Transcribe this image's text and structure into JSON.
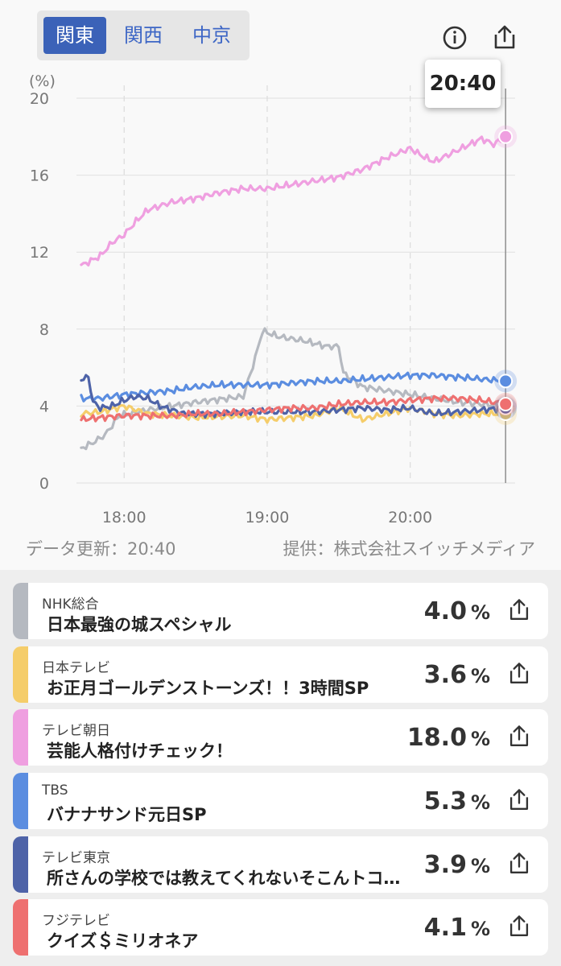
{
  "regions": [
    "関東",
    "関西",
    "中京"
  ],
  "active_region": 0,
  "tooltip_time": "20:40",
  "chart_data": {
    "type": "line",
    "ylabel": "(%)",
    "ylim": [
      0,
      20
    ],
    "yticks": [
      "0",
      "4",
      "8",
      "12",
      "16",
      "20"
    ],
    "xlim": [
      "17:40",
      "20:44"
    ],
    "xticks": [
      "18:00",
      "19:00",
      "20:00"
    ],
    "cursor_time": "20:40",
    "series": [
      {
        "name": "NHK総合",
        "color": "#b5b9c0",
        "x": [
          "17:42",
          "17:47",
          "17:52",
          "17:58",
          "18:10",
          "18:30",
          "18:50",
          "18:55",
          "18:58",
          "19:05",
          "19:15",
          "19:25",
          "19:30",
          "19:32",
          "19:40",
          "20:00",
          "20:20",
          "20:40"
        ],
        "y": [
          1.8,
          2.1,
          2.5,
          3.5,
          3.8,
          4.2,
          4.5,
          6.5,
          7.9,
          7.6,
          7.4,
          7.1,
          7.1,
          5.7,
          5.0,
          4.6,
          4.2,
          4.0
        ]
      },
      {
        "name": "日本テレビ",
        "color": "#f5cd6a",
        "x": [
          "17:42",
          "17:50",
          "18:00",
          "18:10",
          "18:30",
          "18:50",
          "19:00",
          "19:10",
          "19:20",
          "19:30",
          "19:40",
          "19:50",
          "20:00",
          "20:10",
          "20:20",
          "20:30",
          "20:40"
        ],
        "y": [
          3.6,
          3.7,
          4.0,
          3.6,
          3.4,
          3.5,
          3.3,
          3.4,
          3.5,
          3.9,
          3.3,
          3.6,
          3.9,
          3.6,
          3.5,
          3.6,
          3.6
        ]
      },
      {
        "name": "テレビ朝日",
        "color": "#ef9fe0",
        "x": [
          "17:42",
          "17:50",
          "17:55",
          "18:00",
          "18:05",
          "18:10",
          "18:15",
          "18:20",
          "18:30",
          "18:40",
          "18:50",
          "19:00",
          "19:10",
          "19:20",
          "19:30",
          "19:40",
          "19:50",
          "20:00",
          "20:05",
          "20:10",
          "20:20",
          "20:30",
          "20:35",
          "20:40"
        ],
        "y": [
          11.3,
          11.8,
          12.5,
          12.9,
          13.6,
          14.2,
          14.4,
          14.6,
          14.8,
          15.1,
          15.3,
          15.3,
          15.5,
          15.7,
          15.9,
          16.3,
          16.9,
          17.4,
          17.0,
          16.7,
          17.3,
          17.9,
          17.6,
          18.0
        ]
      },
      {
        "name": "TBS",
        "color": "#5b8de0",
        "x": [
          "17:42",
          "17:50",
          "18:00",
          "18:10",
          "18:20",
          "18:30",
          "18:40",
          "18:50",
          "19:00",
          "19:10",
          "19:20",
          "19:30",
          "19:40",
          "19:50",
          "20:00",
          "20:10",
          "20:20",
          "20:30",
          "20:40"
        ],
        "y": [
          4.4,
          4.4,
          4.6,
          4.7,
          4.8,
          5.0,
          5.1,
          5.1,
          5.1,
          5.2,
          5.3,
          5.3,
          5.4,
          5.5,
          5.6,
          5.6,
          5.5,
          5.4,
          5.3
        ]
      },
      {
        "name": "テレビ東京",
        "color": "#4e63a8",
        "x": [
          "17:42",
          "17:45",
          "17:47",
          "17:50",
          "17:55",
          "18:00",
          "18:05",
          "18:10",
          "18:15",
          "18:20",
          "18:25",
          "18:30",
          "18:40",
          "18:50",
          "19:00",
          "19:10",
          "19:20",
          "19:30",
          "19:40",
          "19:50",
          "20:00",
          "20:10",
          "20:20",
          "20:30",
          "20:40"
        ],
        "y": [
          5.4,
          5.5,
          4.2,
          3.9,
          4.0,
          4.3,
          4.5,
          4.4,
          4.0,
          3.8,
          3.6,
          3.6,
          3.6,
          3.7,
          3.7,
          3.7,
          3.7,
          3.8,
          3.9,
          3.8,
          3.9,
          3.6,
          3.7,
          3.8,
          3.9
        ]
      },
      {
        "name": "フジテレビ",
        "color": "#ee7070",
        "x": [
          "17:42",
          "17:50",
          "18:00",
          "18:10",
          "18:20",
          "18:30",
          "18:40",
          "18:50",
          "19:00",
          "19:10",
          "19:20",
          "19:30",
          "19:40",
          "19:50",
          "20:00",
          "20:10",
          "20:20",
          "20:30",
          "20:40"
        ],
        "y": [
          3.3,
          3.4,
          3.5,
          3.5,
          3.5,
          3.6,
          3.6,
          3.7,
          3.8,
          3.9,
          3.9,
          4.1,
          4.2,
          4.2,
          4.3,
          4.4,
          4.4,
          4.3,
          4.1
        ]
      }
    ]
  },
  "footer": {
    "updated": "データ更新：20:40",
    "provider": "提供：株式会社スイッチメディア"
  },
  "channels": [
    {
      "channel": "NHK総合",
      "program": "日本最強の城スペシャル",
      "rating": "4.0",
      "unit": "%",
      "color": "#b5b9c0",
      "icon": "share-icon"
    },
    {
      "channel": "日本テレビ",
      "program": "お正月ゴールデンストーンズ！！3時間SP",
      "rating": "3.6",
      "unit": "%",
      "color": "#f5cd6a",
      "icon": "share-icon"
    },
    {
      "channel": "テレビ朝日",
      "program": "芸能人格付けチェック！",
      "rating": "18.0",
      "unit": "%",
      "color": "#ef9fe0",
      "icon": "share-icon"
    },
    {
      "channel": "TBS",
      "program": "バナナサンド元日SP",
      "rating": "5.3",
      "unit": "%",
      "color": "#5b8de0",
      "icon": "share-icon"
    },
    {
      "channel": "テレビ東京",
      "program": "所さんの学校では教えてくれないそこんトコロ！",
      "rating": "3.9",
      "unit": "%",
      "color": "#4e63a8",
      "icon": "share-icon"
    },
    {
      "channel": "フジテレビ",
      "program": "クイズ＄ミリオネア",
      "rating": "4.1",
      "unit": "%",
      "color": "#ee7070",
      "icon": "share-icon"
    }
  ]
}
